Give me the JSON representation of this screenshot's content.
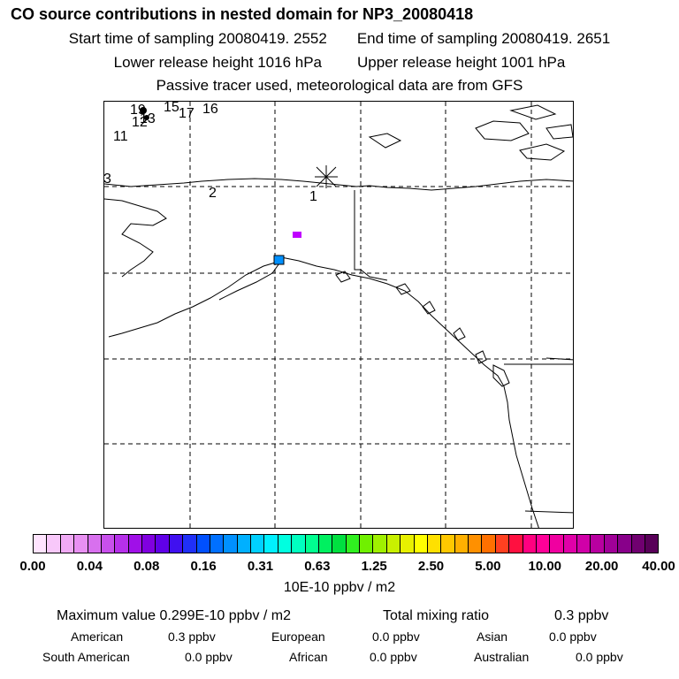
{
  "header": {
    "title": "CO  source contributions in nested domain for NP3_20080418",
    "start_time": "Start time of sampling 20080419.  2552",
    "end_time": "End time of sampling 20080419.  2651",
    "lower_height": "Lower release height 1016 hPa",
    "upper_height": "Upper release height 1001 hPa",
    "tracer_note": "Passive tracer used, meteorological data are from GFS"
  },
  "map": {
    "labels": [
      "1",
      "2",
      "3",
      "11",
      "12",
      "13",
      "15",
      "16",
      "17",
      "19"
    ],
    "colors": {
      "purple": "#c000ff",
      "blue": "#0090ff"
    }
  },
  "colorbar": {
    "ticks": [
      "0.00",
      "0.04",
      "0.08",
      "0.16",
      "0.31",
      "0.63",
      "1.25",
      "2.50",
      "5.00",
      "10.00",
      "20.00",
      "40.00"
    ],
    "unit": "10E-10 ppbv / m2",
    "colors": [
      "#ffe4ff",
      "#f8c8fa",
      "#f0aaf5",
      "#e890f2",
      "#d870ee",
      "#c850ec",
      "#b630ea",
      "#a010e8",
      "#8000e0",
      "#6000e8",
      "#4010f0",
      "#2030f8",
      "#0050ff",
      "#0070ff",
      "#0090ff",
      "#00b0ff",
      "#00d0ff",
      "#00f0ff",
      "#00ffe0",
      "#00ffc0",
      "#00ff90",
      "#00f060",
      "#00e040",
      "#30f020",
      "#70f000",
      "#a0f000",
      "#c8f000",
      "#e8f000",
      "#ffff00",
      "#ffe000",
      "#ffc800",
      "#ffb000",
      "#ff9000",
      "#ff7000",
      "#ff4020",
      "#ff1040",
      "#ff0080",
      "#ff0098",
      "#f000a0",
      "#e000a8",
      "#d000a8",
      "#b800a0",
      "#a00098",
      "#88008a",
      "#700070",
      "#580058"
    ]
  },
  "stats": {
    "max_value": "Maximum value  0.299E-10 ppbv / m2",
    "total_label": "Total mixing ratio",
    "total_value": "0.3 ppbv",
    "american_label": "American",
    "american_value": "0.3 ppbv",
    "european_label": "European",
    "european_value": "0.0 ppbv",
    "asian_label": "Asian",
    "asian_value": "0.0 ppbv",
    "south_american_label": "South American",
    "south_american_value": "0.0 ppbv",
    "african_label": "African",
    "african_value": "0.0 ppbv",
    "australian_label": "Australian",
    "australian_value": "0.0 ppbv"
  }
}
